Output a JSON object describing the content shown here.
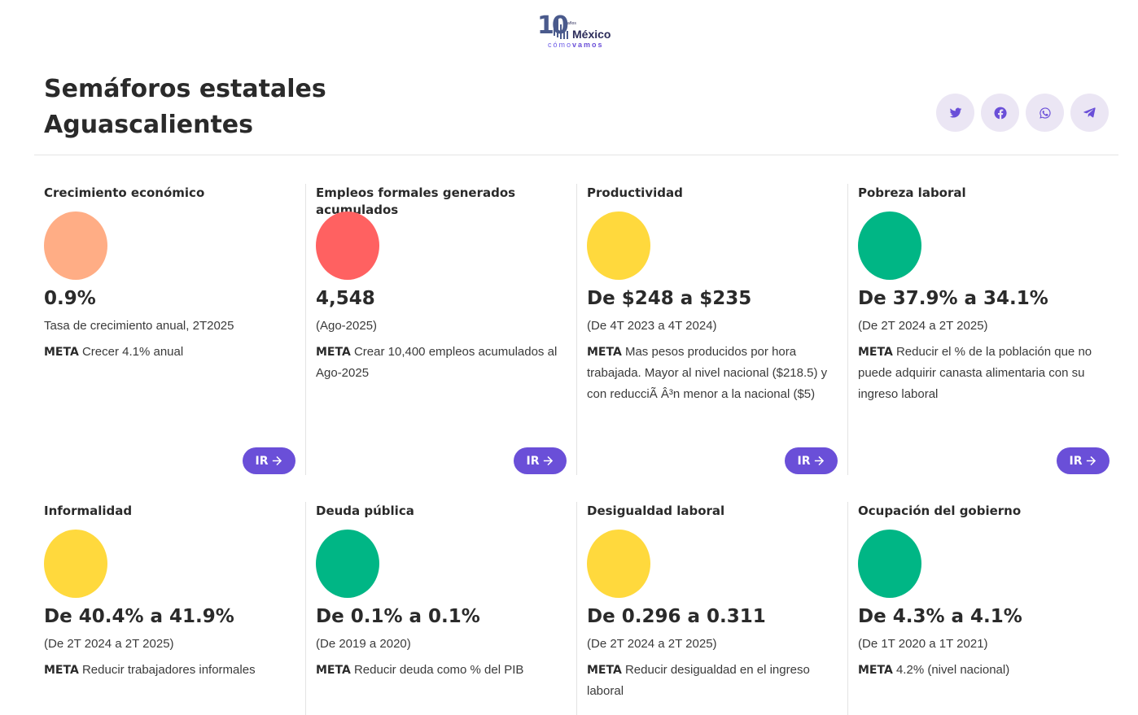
{
  "logo": {
    "text": "México",
    "subtext_light": "cómo",
    "subtext_bold": "vamos",
    "badge": "10",
    "years": "años"
  },
  "page": {
    "title_line1": "Semáforos estatales",
    "title_line2": "Aguascalientes"
  },
  "share": [
    "twitter-icon",
    "facebook-icon",
    "whatsapp-icon",
    "telegram-icon"
  ],
  "colors": {
    "accent": "#6a4fd8",
    "orange": "#ffad85",
    "red": "#ff6161",
    "yellow": "#ffd93d",
    "green": "#00b685"
  },
  "ir_label": "IR",
  "cards": [
    {
      "name": "Crecimiento económico",
      "value": "0.9%",
      "sub": "Tasa de crecimiento anual, 2T2025",
      "meta_label": "META",
      "meta": "Crecer 4.1% anual",
      "status": "orange"
    },
    {
      "name": "Empleos formales generados acumulados",
      "value": "4,548",
      "sub": "(Ago-2025)",
      "meta_label": "META",
      "meta": "Crear 10,400 empleos acumulados al Ago-2025",
      "status": "red"
    },
    {
      "name": "Productividad",
      "value": "De $248 a $235",
      "sub": "(De 4T 2023 a 4T 2024)",
      "meta_label": "META",
      "meta": "Mas pesos producidos por hora trabajada. Mayor al nivel nacional ($218.5) y con reducciÃ  Â³n menor a la nacional ($5)",
      "status": "yellow"
    },
    {
      "name": "Pobreza laboral",
      "value": "De 37.9% a 34.1%",
      "sub": "(De 2T 2024 a 2T 2025)",
      "meta_label": "META",
      "meta": "Reducir el % de la población que no puede adquirir canasta alimentaria con su ingreso laboral",
      "status": "green"
    },
    {
      "name": "Informalidad",
      "value": "De 40.4% a 41.9%",
      "sub": "(De 2T 2024 a 2T 2025)",
      "meta_label": "META",
      "meta": "Reducir trabajadores informales",
      "status": "yellow"
    },
    {
      "name": "Deuda pública",
      "value": "De 0.1% a 0.1%",
      "sub": "(De 2019 a 2020)",
      "meta_label": "META",
      "meta": "Reducir deuda como % del PIB",
      "status": "green"
    },
    {
      "name": "Desigualdad laboral",
      "value": "De 0.296 a 0.311",
      "sub": "(De 2T 2024 a 2T 2025)",
      "meta_label": "META",
      "meta": "Reducir desigualdad en el ingreso laboral",
      "status": "yellow"
    },
    {
      "name": "Ocupación del gobierno",
      "value": "De 4.3% a 4.1%",
      "sub": "(De 1T 2020 a 1T 2021)",
      "meta_label": "META",
      "meta": "4.2% (nivel nacional)",
      "status": "green"
    }
  ]
}
